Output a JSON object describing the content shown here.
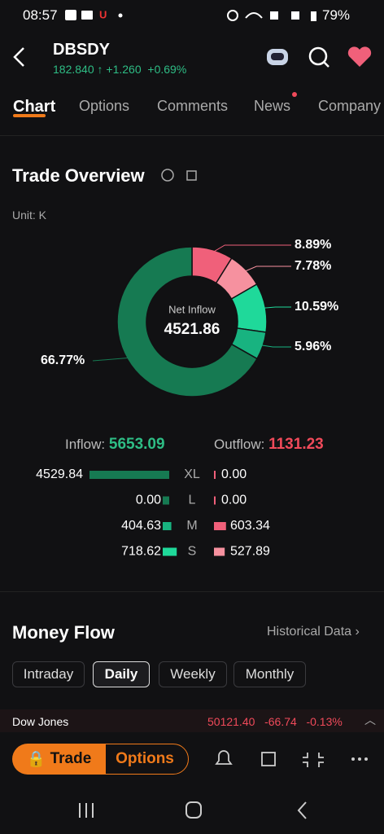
{
  "status_bar": {
    "time": "08:57",
    "battery": "79%"
  },
  "header": {
    "symbol": "DBSDY",
    "price": "182.840",
    "change": "+1.260",
    "change_pct": "+0.69%"
  },
  "tabs": [
    "Chart",
    "Options",
    "Comments",
    "News",
    "Company"
  ],
  "trade_overview": {
    "title": "Trade Overview",
    "unit": "Unit: K",
    "donut": {
      "center_label": "Net Inflow",
      "center_value": "4521.86",
      "segments": [
        {
          "label": "8.89%",
          "value": 8.89,
          "color": "#f0607a"
        },
        {
          "label": "7.78%",
          "value": 7.78,
          "color": "#f6919f"
        },
        {
          "label": "10.59%",
          "value": 10.59,
          "color": "#1fd99a"
        },
        {
          "label": "5.96%",
          "value": 5.96,
          "color": "#18b380"
        },
        {
          "label": "66.77%",
          "value": 66.77,
          "color": "#167a52"
        }
      ]
    },
    "inflow_label": "Inflow:",
    "inflow": "5653.09",
    "outflow_label": "Outflow:",
    "outflow": "1131.23",
    "rows": [
      {
        "in": "4529.84",
        "in_value": 4529.84,
        "size": "XL",
        "out": "0.00",
        "out_value": 0
      },
      {
        "in": "0.00",
        "in_value": 0,
        "size": "L",
        "out": "0.00",
        "out_value": 0
      },
      {
        "in": "404.63",
        "in_value": 404.63,
        "size": "M",
        "out": "603.34",
        "out_value": 603.34
      },
      {
        "in": "718.62",
        "in_value": 718.62,
        "size": "S",
        "out": "527.89",
        "out_value": 527.89
      }
    ]
  },
  "money_flow": {
    "title": "Money Flow",
    "link": "Historical Data",
    "periods": [
      "Intraday",
      "Daily",
      "Weekly",
      "Monthly"
    ],
    "selected": 1
  },
  "ticker": {
    "name": "Dow Jones",
    "value": "50121.40",
    "change": "-66.74",
    "change_pct": "-0.13%"
  },
  "bottom_bar": {
    "trade": "Trade",
    "options": "Options"
  }
}
